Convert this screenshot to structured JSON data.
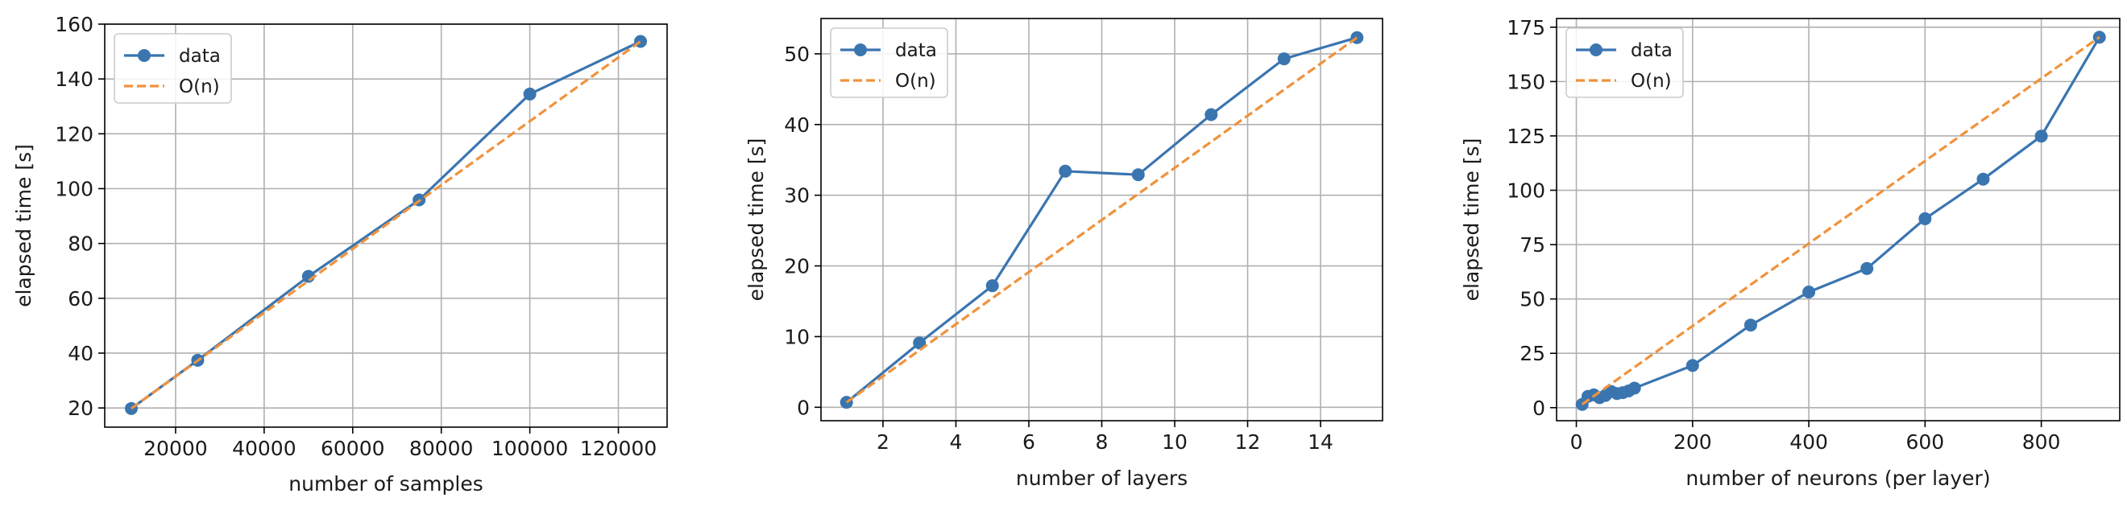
{
  "colors": {
    "data": "#3a75b0",
    "fit": "#f0923c",
    "grid": "#b0b0b0",
    "frame": "#000000"
  },
  "legend": {
    "placement": "top-left",
    "entries": [
      "data",
      "O(n)"
    ]
  },
  "chart_data": [
    {
      "type": "line",
      "title": "",
      "xlabel": "number of samples",
      "ylabel": "elapsed time [s]",
      "xlim": [
        4000,
        131000
      ],
      "ylim": [
        13,
        160
      ],
      "x_ticks": [
        20000,
        40000,
        60000,
        80000,
        100000,
        120000
      ],
      "x_tick_labels": [
        "20000",
        "40000",
        "60000",
        "80000",
        "100000",
        "120000"
      ],
      "y_ticks": [
        20,
        40,
        60,
        80,
        100,
        120,
        140,
        160
      ],
      "y_tick_labels": [
        "20",
        "40",
        "60",
        "80",
        "100",
        "120",
        "140",
        "160"
      ],
      "grid": true,
      "legend": "top-left",
      "series": [
        {
          "name": "data",
          "style": "solid-markers",
          "x": [
            10000,
            25000,
            50000,
            75000,
            100000,
            125000
          ],
          "y": [
            19.8,
            37.4,
            68.0,
            95.9,
            134.5,
            153.7
          ]
        },
        {
          "name": "O(n)",
          "style": "dashed",
          "x": [
            10000,
            125000
          ],
          "y": [
            19.8,
            153.7
          ]
        }
      ]
    },
    {
      "type": "line",
      "title": "",
      "xlabel": "number of layers",
      "ylabel": "elapsed time [s]",
      "xlim": [
        0.3,
        15.7
      ],
      "ylim": [
        -1.9,
        55
      ],
      "x_ticks": [
        2,
        4,
        6,
        8,
        10,
        12,
        14
      ],
      "x_tick_labels": [
        "2",
        "4",
        "6",
        "8",
        "10",
        "12",
        "14"
      ],
      "y_ticks": [
        0,
        10,
        20,
        30,
        40,
        50
      ],
      "y_tick_labels": [
        "0",
        "10",
        "20",
        "30",
        "40",
        "50"
      ],
      "grid": true,
      "legend": "top-left",
      "series": [
        {
          "name": "data",
          "style": "solid-markers",
          "x": [
            1,
            3,
            5,
            7,
            9,
            11,
            13,
            15
          ],
          "y": [
            0.7,
            9.1,
            17.2,
            33.4,
            32.9,
            41.4,
            49.3,
            52.3
          ]
        },
        {
          "name": "O(n)",
          "style": "dashed",
          "x": [
            1,
            15
          ],
          "y": [
            0.7,
            52.3
          ]
        }
      ]
    },
    {
      "type": "line",
      "title": "",
      "xlabel": "number of neurons (per layer)",
      "ylabel": "elapsed time [s]",
      "xlim": [
        -34,
        935
      ],
      "ylim": [
        -6,
        179
      ],
      "x_ticks": [
        0,
        200,
        400,
        600,
        800
      ],
      "x_tick_labels": [
        "0",
        "200",
        "400",
        "600",
        "800"
      ],
      "y_ticks": [
        0,
        25,
        50,
        75,
        100,
        125,
        150,
        175
      ],
      "y_tick_labels": [
        "0",
        "25",
        "50",
        "75",
        "100",
        "125",
        "150",
        "175"
      ],
      "grid": true,
      "legend": "top-left",
      "series": [
        {
          "name": "data",
          "style": "solid-markers",
          "x": [
            10,
            20,
            30,
            40,
            50,
            60,
            70,
            80,
            90,
            100,
            200,
            300,
            400,
            500,
            600,
            700,
            800,
            900
          ],
          "y": [
            1.5,
            5.2,
            5.9,
            4.6,
            5.6,
            7.4,
            6.5,
            6.9,
            7.7,
            9.0,
            19.4,
            38.0,
            53.2,
            64.0,
            86.9,
            105.1,
            124.9,
            170.4
          ]
        },
        {
          "name": "O(n)",
          "style": "dashed",
          "x": [
            10,
            900
          ],
          "y": [
            1.5,
            170.4
          ]
        }
      ]
    }
  ]
}
